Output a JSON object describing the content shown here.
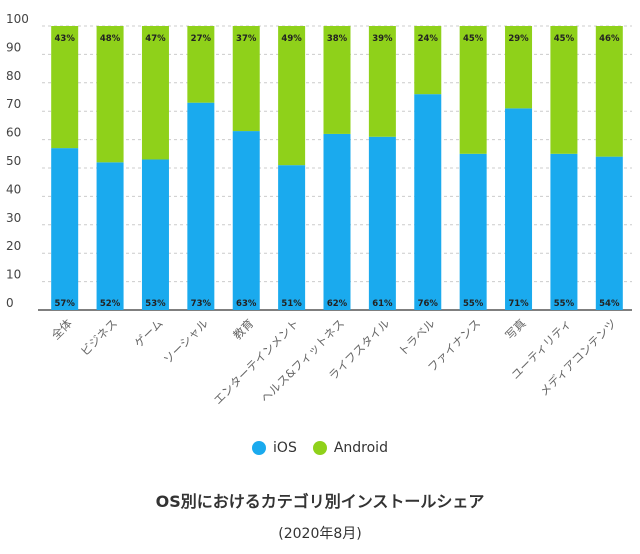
{
  "chart_data": {
    "type": "bar",
    "stacked": true,
    "title": "OS別におけるカテゴリ別インストールシェア",
    "subtitle": "(2020年8月)",
    "ylim": [
      0,
      100
    ],
    "yticks": [
      0,
      10,
      20,
      30,
      40,
      50,
      60,
      70,
      80,
      90,
      100
    ],
    "grid": true,
    "legend_position": "bottom",
    "categories": [
      "全体",
      "ビジネス",
      "ゲーム",
      "ソーシャル",
      "教育",
      "エンターテインメント",
      "ヘルス&フィットネス",
      "ライフスタイル",
      "トラベル",
      "ファイナンス",
      "写真",
      "ユーティリティ",
      "メディアコンテンツ"
    ],
    "series": [
      {
        "name": "iOS",
        "color": "#1aaaee",
        "values": [
          57,
          52,
          53,
          73,
          63,
          51,
          62,
          61,
          76,
          55,
          71,
          55,
          54
        ],
        "labels": [
          "57%",
          "52%",
          "53%",
          "73%",
          "63%",
          "51%",
          "62%",
          "61%",
          "76%",
          "55%",
          "71%",
          "55%",
          "54%"
        ]
      },
      {
        "name": "Android",
        "color": "#8fd11a",
        "values": [
          43,
          48,
          47,
          27,
          37,
          49,
          38,
          39,
          24,
          45,
          29,
          45,
          46
        ],
        "labels": [
          "43%",
          "48%",
          "47%",
          "27%",
          "37%",
          "49%",
          "38%",
          "39%",
          "24%",
          "45%",
          "29%",
          "45%",
          "46%"
        ]
      }
    ]
  }
}
